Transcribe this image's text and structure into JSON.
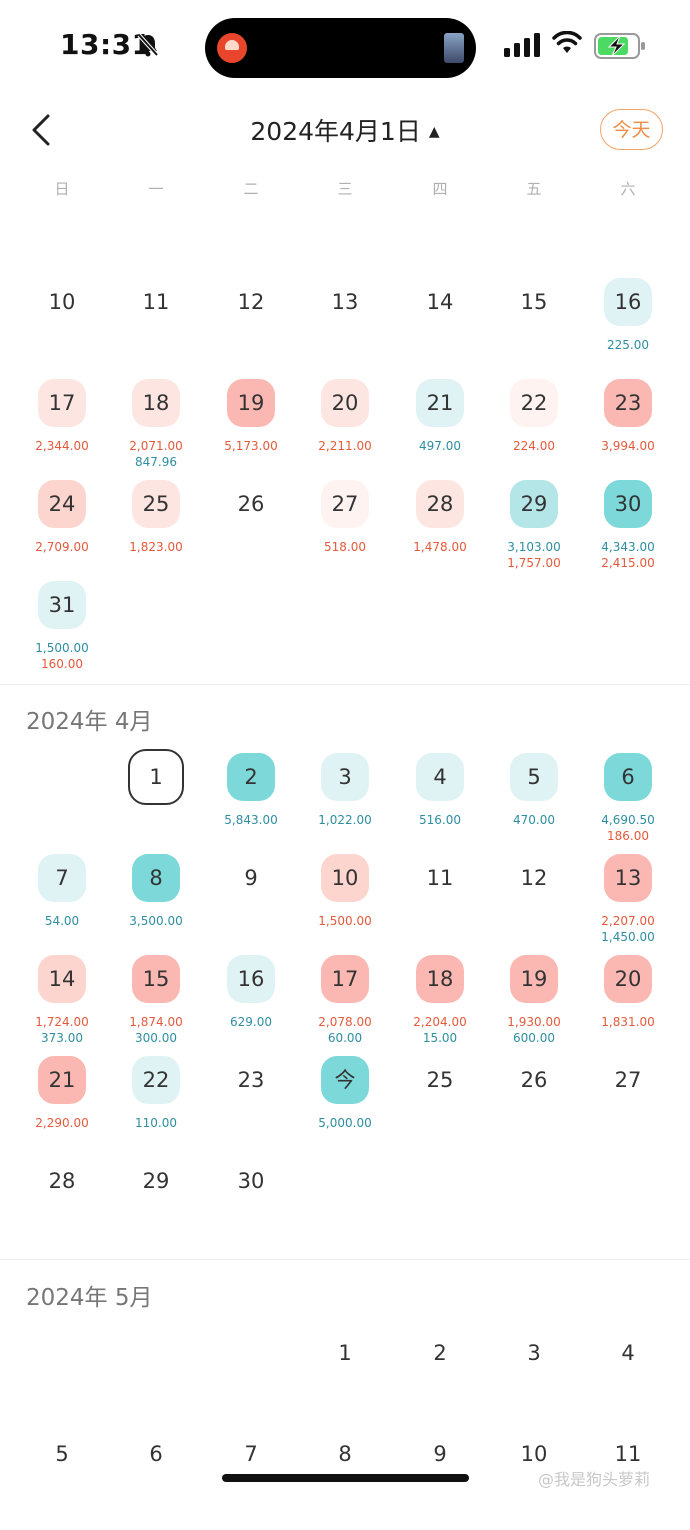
{
  "status_bar": {
    "time": "13:31"
  },
  "header": {
    "title": "2024年4月1日",
    "caret": "▲",
    "today_button": "今天"
  },
  "weekdays": [
    "日",
    "一",
    "二",
    "三",
    "四",
    "五",
    "六"
  ],
  "colors": {
    "income_text": "#2e8ea0",
    "expense_text": "#e35a3b",
    "teal_strong": "#7dd9d9",
    "teal_mid": "#b4e6e8",
    "teal_light": "#e0f3f4",
    "red_strong": "#fbb8b3",
    "red_mid": "#fcd5cf",
    "red_light": "#fde6e1",
    "red_faint": "#fef3f0",
    "accent_orange": "#ef8d45"
  },
  "months": [
    {
      "label": "",
      "start_col": 0,
      "days": [
        {
          "d": "10"
        },
        {
          "d": "11"
        },
        {
          "d": "12"
        },
        {
          "d": "13"
        },
        {
          "d": "14"
        },
        {
          "d": "15"
        },
        {
          "d": "16",
          "bg": "teal_light",
          "lines": [
            {
              "v": "225.00",
              "t": "inc"
            }
          ]
        },
        {
          "d": "17",
          "bg": "red_light",
          "lines": [
            {
              "v": "2,344.00",
              "t": "exp"
            }
          ]
        },
        {
          "d": "18",
          "bg": "red_light",
          "lines": [
            {
              "v": "2,071.00",
              "t": "exp"
            },
            {
              "v": "847.96",
              "t": "inc"
            }
          ]
        },
        {
          "d": "19",
          "bg": "red_strong",
          "lines": [
            {
              "v": "5,173.00",
              "t": "exp"
            }
          ]
        },
        {
          "d": "20",
          "bg": "red_light",
          "lines": [
            {
              "v": "2,211.00",
              "t": "exp"
            }
          ]
        },
        {
          "d": "21",
          "bg": "teal_light",
          "lines": [
            {
              "v": "497.00",
              "t": "inc"
            }
          ]
        },
        {
          "d": "22",
          "bg": "red_faint",
          "lines": [
            {
              "v": "224.00",
              "t": "exp"
            }
          ]
        },
        {
          "d": "23",
          "bg": "red_strong",
          "lines": [
            {
              "v": "3,994.00",
              "t": "exp"
            }
          ]
        },
        {
          "d": "24",
          "bg": "red_mid",
          "lines": [
            {
              "v": "2,709.00",
              "t": "exp"
            }
          ]
        },
        {
          "d": "25",
          "bg": "red_light",
          "lines": [
            {
              "v": "1,823.00",
              "t": "exp"
            }
          ]
        },
        {
          "d": "26"
        },
        {
          "d": "27",
          "bg": "red_faint",
          "lines": [
            {
              "v": "518.00",
              "t": "exp"
            }
          ]
        },
        {
          "d": "28",
          "bg": "red_light",
          "lines": [
            {
              "v": "1,478.00",
              "t": "exp"
            }
          ]
        },
        {
          "d": "29",
          "bg": "teal_mid",
          "lines": [
            {
              "v": "3,103.00",
              "t": "inc"
            },
            {
              "v": "1,757.00",
              "t": "exp"
            }
          ]
        },
        {
          "d": "30",
          "bg": "teal_strong",
          "lines": [
            {
              "v": "4,343.00",
              "t": "inc"
            },
            {
              "v": "2,415.00",
              "t": "exp"
            }
          ]
        },
        {
          "d": "31",
          "bg": "teal_light",
          "lines": [
            {
              "v": "1,500.00",
              "t": "inc"
            },
            {
              "v": "160.00",
              "t": "exp"
            }
          ]
        }
      ]
    },
    {
      "label": "2024年 4月",
      "start_col": 1,
      "days": [
        {
          "d": "1",
          "ring": true
        },
        {
          "d": "2",
          "bg": "teal_strong",
          "lines": [
            {
              "v": "5,843.00",
              "t": "inc"
            }
          ]
        },
        {
          "d": "3",
          "bg": "teal_light",
          "lines": [
            {
              "v": "1,022.00",
              "t": "inc"
            }
          ]
        },
        {
          "d": "4",
          "bg": "teal_light",
          "lines": [
            {
              "v": "516.00",
              "t": "inc"
            }
          ]
        },
        {
          "d": "5",
          "bg": "teal_light",
          "lines": [
            {
              "v": "470.00",
              "t": "inc"
            }
          ]
        },
        {
          "d": "6",
          "bg": "teal_strong",
          "lines": [
            {
              "v": "4,690.50",
              "t": "inc"
            },
            {
              "v": "186.00",
              "t": "exp"
            }
          ]
        },
        {
          "d": "7",
          "bg": "teal_light",
          "lines": [
            {
              "v": "54.00",
              "t": "inc"
            }
          ]
        },
        {
          "d": "8",
          "bg": "teal_strong",
          "lines": [
            {
              "v": "3,500.00",
              "t": "inc"
            }
          ]
        },
        {
          "d": "9"
        },
        {
          "d": "10",
          "bg": "red_mid",
          "lines": [
            {
              "v": "1,500.00",
              "t": "exp"
            }
          ]
        },
        {
          "d": "11"
        },
        {
          "d": "12"
        },
        {
          "d": "13",
          "bg": "red_strong",
          "lines": [
            {
              "v": "2,207.00",
              "t": "exp"
            },
            {
              "v": "1,450.00",
              "t": "inc"
            }
          ]
        },
        {
          "d": "14",
          "bg": "red_mid",
          "lines": [
            {
              "v": "1,724.00",
              "t": "exp"
            },
            {
              "v": "373.00",
              "t": "inc"
            }
          ]
        },
        {
          "d": "15",
          "bg": "red_strong",
          "lines": [
            {
              "v": "1,874.00",
              "t": "exp"
            },
            {
              "v": "300.00",
              "t": "inc"
            }
          ]
        },
        {
          "d": "16",
          "bg": "teal_light",
          "lines": [
            {
              "v": "629.00",
              "t": "inc"
            }
          ]
        },
        {
          "d": "17",
          "bg": "red_strong",
          "lines": [
            {
              "v": "2,078.00",
              "t": "exp"
            },
            {
              "v": "60.00",
              "t": "inc"
            }
          ]
        },
        {
          "d": "18",
          "bg": "red_strong",
          "lines": [
            {
              "v": "2,204.00",
              "t": "exp"
            },
            {
              "v": "15.00",
              "t": "inc"
            }
          ]
        },
        {
          "d": "19",
          "bg": "red_strong",
          "lines": [
            {
              "v": "1,930.00",
              "t": "exp"
            },
            {
              "v": "600.00",
              "t": "inc"
            }
          ]
        },
        {
          "d": "20",
          "bg": "red_strong",
          "lines": [
            {
              "v": "1,831.00",
              "t": "exp"
            }
          ]
        },
        {
          "d": "21",
          "bg": "red_strong",
          "lines": [
            {
              "v": "2,290.00",
              "t": "exp"
            }
          ]
        },
        {
          "d": "22",
          "bg": "teal_light",
          "lines": [
            {
              "v": "110.00",
              "t": "inc"
            }
          ]
        },
        {
          "d": "23"
        },
        {
          "d": "今",
          "bg": "teal_strong",
          "lines": [
            {
              "v": "5,000.00",
              "t": "inc"
            }
          ]
        },
        {
          "d": "25"
        },
        {
          "d": "26"
        },
        {
          "d": "27"
        },
        {
          "d": "28"
        },
        {
          "d": "29"
        },
        {
          "d": "30"
        }
      ]
    },
    {
      "label": "2024年 5月",
      "start_col": 3,
      "days": [
        {
          "d": "1"
        },
        {
          "d": "2"
        },
        {
          "d": "3"
        },
        {
          "d": "4"
        },
        {
          "d": "5"
        },
        {
          "d": "6"
        },
        {
          "d": "7"
        },
        {
          "d": "8"
        },
        {
          "d": "9"
        },
        {
          "d": "10"
        },
        {
          "d": "11"
        }
      ]
    }
  ],
  "watermark": "@我是狗头萝莉"
}
